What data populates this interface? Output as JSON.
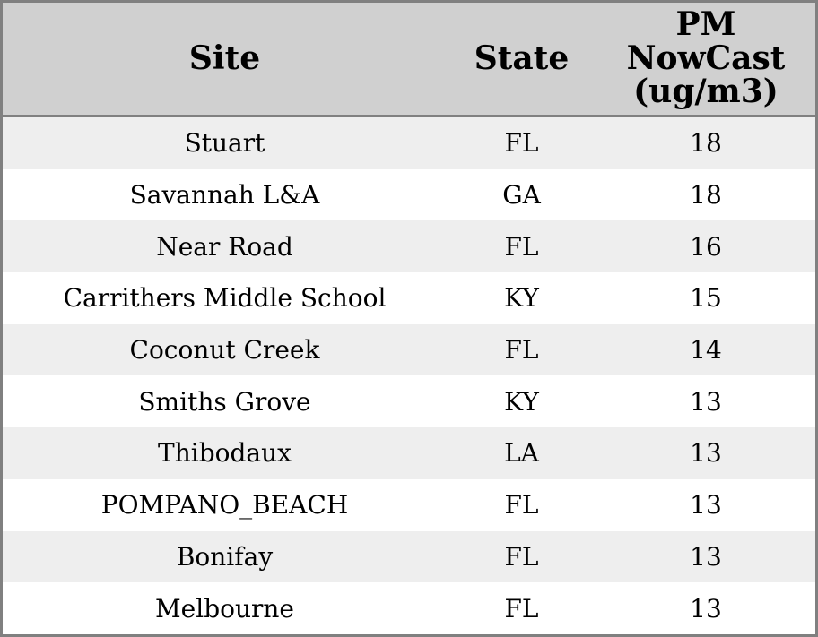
{
  "colors": {
    "outer_border": "#808080",
    "header_bg": "#d0d0d0",
    "row_odd_bg": "#eeeeee",
    "row_even_bg": "#ffffff",
    "text": "#000000"
  },
  "table": {
    "columns": [
      {
        "label": "Site"
      },
      {
        "label": "State"
      },
      {
        "label": "PM\nNowCast\n(ug/m3)"
      }
    ],
    "rows": [
      [
        "Stuart",
        "FL",
        "18"
      ],
      [
        "Savannah L&A",
        "GA",
        "18"
      ],
      [
        "Near Road",
        "FL",
        "16"
      ],
      [
        "Carrithers Middle School",
        "KY",
        "15"
      ],
      [
        "Coconut Creek",
        "FL",
        "14"
      ],
      [
        "Smiths Grove",
        "KY",
        "13"
      ],
      [
        "Thibodaux",
        "LA",
        "13"
      ],
      [
        "POMPANO_BEACH",
        "FL",
        "13"
      ],
      [
        "Bonifay",
        "FL",
        "13"
      ],
      [
        "Melbourne",
        "FL",
        "13"
      ]
    ]
  },
  "chart_data": {
    "type": "table",
    "title": "",
    "columns": [
      "Site",
      "State",
      "PM NowCast (ug/m3)"
    ],
    "rows": [
      [
        "Stuart",
        "FL",
        18
      ],
      [
        "Savannah L&A",
        "GA",
        18
      ],
      [
        "Near Road",
        "FL",
        16
      ],
      [
        "Carrithers Middle School",
        "KY",
        15
      ],
      [
        "Coconut Creek",
        "FL",
        14
      ],
      [
        "Smiths Grove",
        "KY",
        13
      ],
      [
        "Thibodaux",
        "LA",
        13
      ],
      [
        "POMPANO_BEACH",
        "FL",
        13
      ],
      [
        "Bonifay",
        "FL",
        13
      ],
      [
        "Melbourne",
        "FL",
        13
      ]
    ]
  }
}
